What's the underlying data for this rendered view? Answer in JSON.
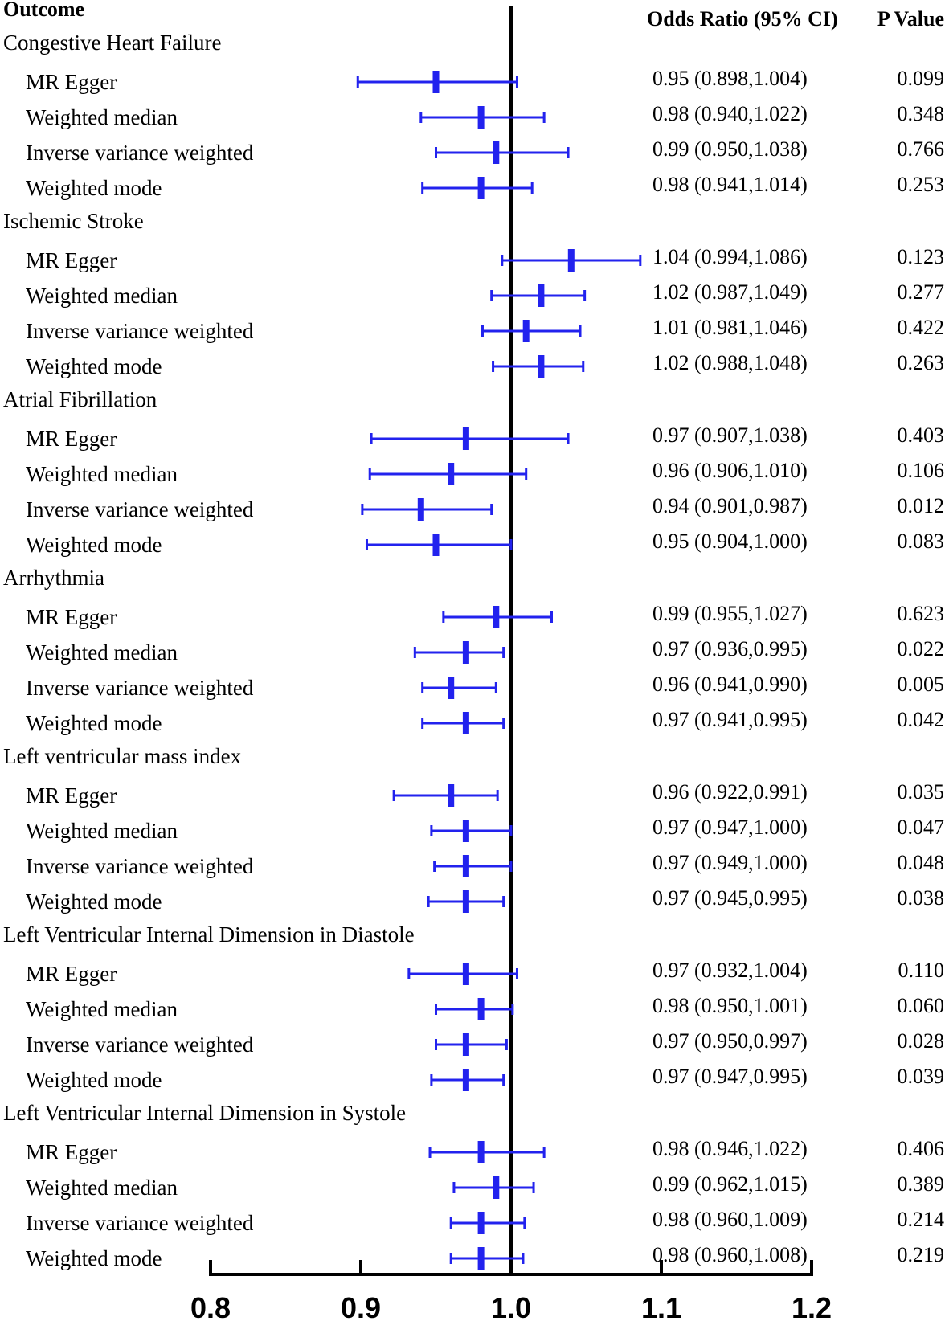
{
  "colors": {
    "marker": "#2222ee",
    "axis": "#000000"
  },
  "chart_data": {
    "type": "forest",
    "title": "",
    "headers": {
      "outcome": "Outcome",
      "or": "Odds Ratio (95% CI)",
      "p": "P Value"
    },
    "x_axis": {
      "range": [
        0.8,
        1.2
      ],
      "ticks": [
        0.8,
        0.9,
        1.0,
        1.1,
        1.2
      ],
      "tick_labels": [
        "0.8",
        "0.9",
        "1.0",
        "1.1",
        "1.2"
      ],
      "reference_line": 1.0
    },
    "groups": [
      {
        "name": "Congestive Heart Failure",
        "rows": [
          {
            "method": "MR Egger",
            "or": 0.95,
            "lower": 0.898,
            "upper": 1.004,
            "or_text": "0.95 (0.898,1.004)",
            "p": "0.099"
          },
          {
            "method": "Weighted median",
            "or": 0.98,
            "lower": 0.94,
            "upper": 1.022,
            "or_text": "0.98 (0.940,1.022)",
            "p": "0.348"
          },
          {
            "method": "Inverse variance weighted",
            "or": 0.99,
            "lower": 0.95,
            "upper": 1.038,
            "or_text": "0.99 (0.950,1.038)",
            "p": "0.766"
          },
          {
            "method": "Weighted mode",
            "or": 0.98,
            "lower": 0.941,
            "upper": 1.014,
            "or_text": "0.98 (0.941,1.014)",
            "p": "0.253"
          }
        ]
      },
      {
        "name": "Ischemic Stroke",
        "rows": [
          {
            "method": "MR Egger",
            "or": 1.04,
            "lower": 0.994,
            "upper": 1.086,
            "or_text": "1.04 (0.994,1.086)",
            "p": "0.123"
          },
          {
            "method": "Weighted median",
            "or": 1.02,
            "lower": 0.987,
            "upper": 1.049,
            "or_text": "1.02 (0.987,1.049)",
            "p": "0.277"
          },
          {
            "method": "Inverse variance weighted",
            "or": 1.01,
            "lower": 0.981,
            "upper": 1.046,
            "or_text": "1.01 (0.981,1.046)",
            "p": "0.422"
          },
          {
            "method": "Weighted mode",
            "or": 1.02,
            "lower": 0.988,
            "upper": 1.048,
            "or_text": "1.02 (0.988,1.048)",
            "p": "0.263"
          }
        ]
      },
      {
        "name": "Atrial Fibrillation",
        "rows": [
          {
            "method": "MR Egger",
            "or": 0.97,
            "lower": 0.907,
            "upper": 1.038,
            "or_text": "0.97 (0.907,1.038)",
            "p": "0.403"
          },
          {
            "method": "Weighted median",
            "or": 0.96,
            "lower": 0.906,
            "upper": 1.01,
            "or_text": "0.96 (0.906,1.010)",
            "p": "0.106"
          },
          {
            "method": "Inverse variance weighted",
            "or": 0.94,
            "lower": 0.901,
            "upper": 0.987,
            "or_text": "0.94 (0.901,0.987)",
            "p": "0.012"
          },
          {
            "method": "Weighted mode",
            "or": 0.95,
            "lower": 0.904,
            "upper": 1.0,
            "or_text": "0.95 (0.904,1.000)",
            "p": "0.083"
          }
        ]
      },
      {
        "name": "Arrhythmia",
        "rows": [
          {
            "method": "MR Egger",
            "or": 0.99,
            "lower": 0.955,
            "upper": 1.027,
            "or_text": "0.99 (0.955,1.027)",
            "p": "0.623"
          },
          {
            "method": "Weighted median",
            "or": 0.97,
            "lower": 0.936,
            "upper": 0.995,
            "or_text": "0.97 (0.936,0.995)",
            "p": "0.022"
          },
          {
            "method": "Inverse variance weighted",
            "or": 0.96,
            "lower": 0.941,
            "upper": 0.99,
            "or_text": "0.96 (0.941,0.990)",
            "p": "0.005"
          },
          {
            "method": "Weighted mode",
            "or": 0.97,
            "lower": 0.941,
            "upper": 0.995,
            "or_text": "0.97 (0.941,0.995)",
            "p": "0.042"
          }
        ]
      },
      {
        "name": "Left ventricular mass index",
        "rows": [
          {
            "method": "MR Egger",
            "or": 0.96,
            "lower": 0.922,
            "upper": 0.991,
            "or_text": "0.96 (0.922,0.991)",
            "p": "0.035"
          },
          {
            "method": "Weighted median",
            "or": 0.97,
            "lower": 0.947,
            "upper": 1.0,
            "or_text": "0.97 (0.947,1.000)",
            "p": "0.047"
          },
          {
            "method": "Inverse variance weighted",
            "or": 0.97,
            "lower": 0.949,
            "upper": 1.0,
            "or_text": "0.97 (0.949,1.000)",
            "p": "0.048"
          },
          {
            "method": "Weighted mode",
            "or": 0.97,
            "lower": 0.945,
            "upper": 0.995,
            "or_text": "0.97 (0.945,0.995)",
            "p": "0.038"
          }
        ]
      },
      {
        "name": "Left Ventricular Internal Dimension in Diastole",
        "rows": [
          {
            "method": "MR Egger",
            "or": 0.97,
            "lower": 0.932,
            "upper": 1.004,
            "or_text": "0.97 (0.932,1.004)",
            "p": "0.110"
          },
          {
            "method": "Weighted median",
            "or": 0.98,
            "lower": 0.95,
            "upper": 1.001,
            "or_text": "0.98 (0.950,1.001)",
            "p": "0.060"
          },
          {
            "method": "Inverse variance weighted",
            "or": 0.97,
            "lower": 0.95,
            "upper": 0.997,
            "or_text": "0.97 (0.950,0.997)",
            "p": "0.028"
          },
          {
            "method": "Weighted mode",
            "or": 0.97,
            "lower": 0.947,
            "upper": 0.995,
            "or_text": "0.97 (0.947,0.995)",
            "p": "0.039"
          }
        ]
      },
      {
        "name": "Left Ventricular Internal Dimension in Systole",
        "rows": [
          {
            "method": "MR Egger",
            "or": 0.98,
            "lower": 0.946,
            "upper": 1.022,
            "or_text": "0.98 (0.946,1.022)",
            "p": "0.406"
          },
          {
            "method": "Weighted median",
            "or": 0.99,
            "lower": 0.962,
            "upper": 1.015,
            "or_text": "0.99 (0.962,1.015)",
            "p": "0.389"
          },
          {
            "method": "Inverse variance weighted",
            "or": 0.98,
            "lower": 0.96,
            "upper": 1.009,
            "or_text": "0.98 (0.960,1.009)",
            "p": "0.214"
          },
          {
            "method": "Weighted mode",
            "or": 0.98,
            "lower": 0.96,
            "upper": 1.008,
            "or_text": "0.98 (0.960,1.008)",
            "p": "0.219"
          }
        ]
      }
    ]
  }
}
